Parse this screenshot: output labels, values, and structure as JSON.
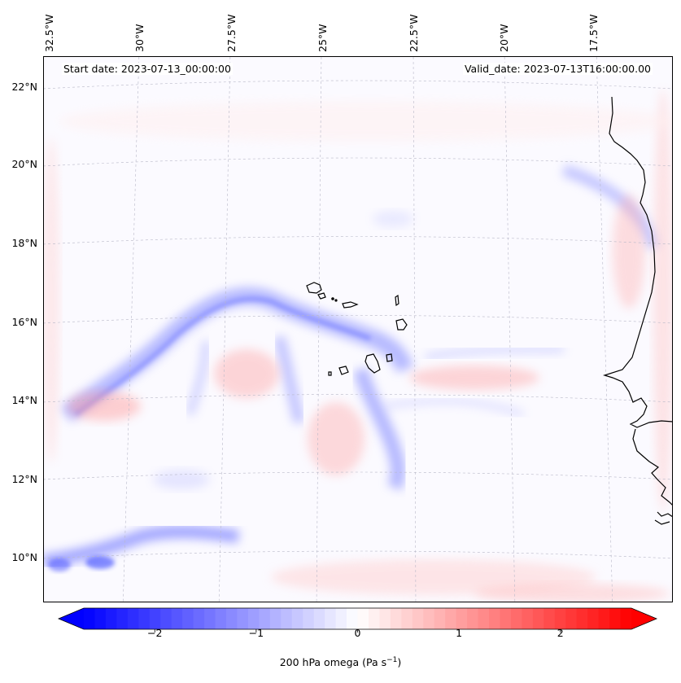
{
  "map": {
    "start_date": "Start date: 2023-07-13_00:00:00",
    "valid_date": "Valid_date: 2023-07-13T16:00:00.00",
    "lon_labels": [
      "32.5°W",
      "30°W",
      "27.5°W",
      "25°W",
      "22.5°W",
      "20°W",
      "17.5°W"
    ],
    "lat_labels": [
      "22°N",
      "20°N",
      "18°N",
      "16°N",
      "14°N",
      "12°N",
      "10°N"
    ],
    "gridlines": true,
    "coastline_color": "#000000"
  },
  "colorbar": {
    "label": "200 hPa omega (Pa s",
    "label_sup": "−1",
    "label_close": ")",
    "ticks": [
      "−2",
      "−1",
      "0",
      "1",
      "2"
    ],
    "range": [
      -2.7,
      2.7
    ],
    "cmap_low": "#0000ff",
    "cmap_mid": "#ffffff",
    "cmap_high": "#ff0000",
    "extend": "both"
  }
}
